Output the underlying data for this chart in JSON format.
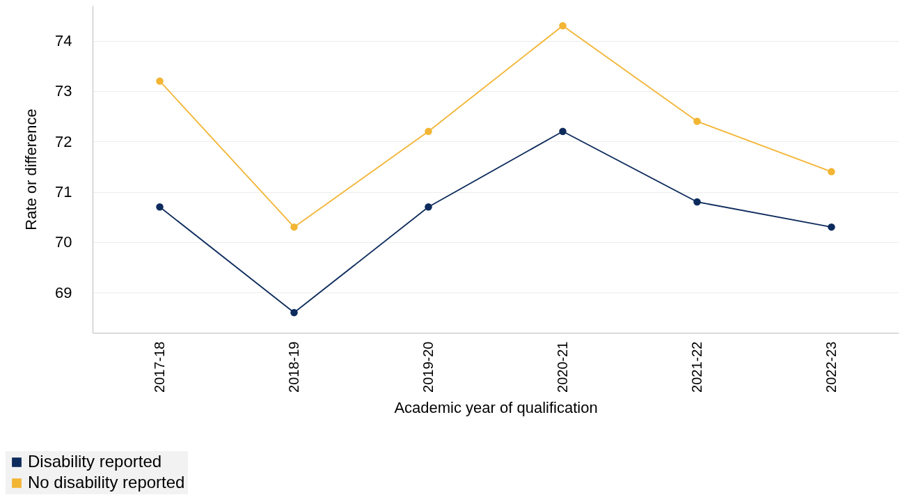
{
  "chart_data": {
    "type": "line",
    "xlabel": "Academic year of qualification",
    "ylabel": "Rate or difference",
    "categories": [
      "2017-18",
      "2018-19",
      "2019-20",
      "2020-21",
      "2021-22",
      "2022-23"
    ],
    "series": [
      {
        "name": "Disability reported",
        "color": "#0d2b5c",
        "values": [
          70.7,
          68.6,
          70.7,
          72.2,
          70.8,
          70.3
        ]
      },
      {
        "name": "No disability reported",
        "color": "#f2b534",
        "values": [
          73.2,
          70.3,
          72.2,
          74.3,
          72.4,
          71.4
        ]
      }
    ],
    "ylim": [
      68.2,
      74.7
    ],
    "yticks": [
      69,
      70,
      71,
      72,
      73,
      74
    ],
    "grid": "y",
    "legend": "bottom left",
    "marker": "circle",
    "line_style": "solid"
  }
}
